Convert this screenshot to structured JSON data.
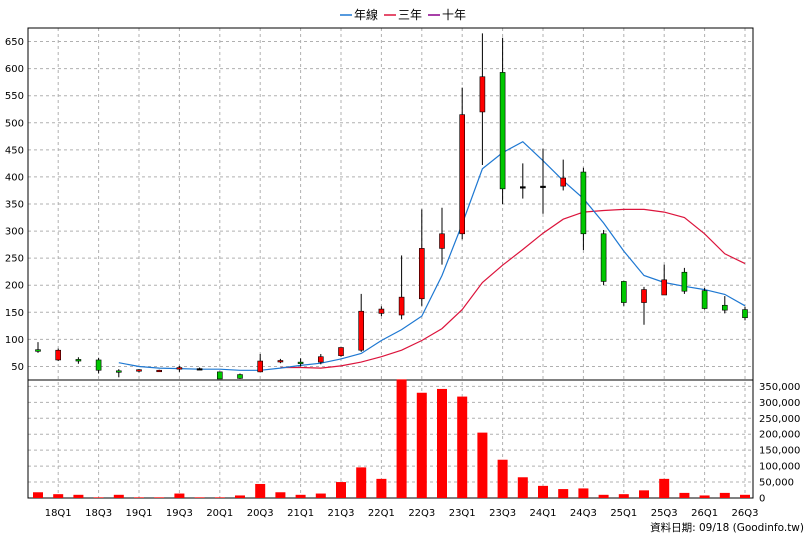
{
  "chart_data": {
    "type": "candlestick-with-volume",
    "legend": [
      {
        "name": "年線",
        "color": "#1E78D2"
      },
      {
        "name": "三年",
        "color": "#DC143C"
      },
      {
        "name": "十年",
        "color": "#8B008B"
      }
    ],
    "x_tick_labels": [
      "18Q1",
      "18Q3",
      "19Q1",
      "19Q3",
      "20Q1",
      "20Q3",
      "21Q1",
      "21Q3",
      "22Q1",
      "22Q3",
      "23Q1",
      "23Q3",
      "24Q1",
      "24Q3",
      "25Q1",
      "25Q3",
      "26Q1",
      "26Q3"
    ],
    "price_axis": {
      "ylim": [
        25,
        675
      ],
      "ticks": [
        50,
        100,
        150,
        200,
        250,
        300,
        350,
        400,
        450,
        500,
        550,
        600,
        650
      ]
    },
    "volume_axis": {
      "ylim": [
        0,
        370000
      ],
      "ticks": [
        "0",
        "50,000",
        "100,000",
        "150,000",
        "200,000",
        "250,000",
        "300,000",
        "350,000"
      ]
    },
    "grid": true,
    "candles": [
      {
        "o": 81,
        "h": 95,
        "l": 75,
        "c": 78
      },
      {
        "o": 62,
        "h": 83,
        "l": 60,
        "c": 80
      },
      {
        "o": 63,
        "h": 67,
        "l": 55,
        "c": 60
      },
      {
        "o": 62,
        "h": 66,
        "l": 37,
        "c": 43
      },
      {
        "o": 42,
        "h": 45,
        "l": 30,
        "c": 41
      },
      {
        "o": 42,
        "h": 45,
        "l": 39,
        "c": 44
      },
      {
        "o": 42,
        "h": 44,
        "l": 40,
        "c": 43
      },
      {
        "o": 45,
        "h": 51,
        "l": 40,
        "c": 48
      },
      {
        "o": 46,
        "h": 48,
        "l": 44,
        "c": 46
      },
      {
        "o": 40,
        "h": 40,
        "l": 29,
        "c": 27
      },
      {
        "o": 35,
        "h": 37,
        "l": 27,
        "c": 28
      },
      {
        "o": 40,
        "h": 73,
        "l": 40,
        "c": 60
      },
      {
        "o": 60,
        "h": 64,
        "l": 56,
        "c": 61
      },
      {
        "o": 58,
        "h": 65,
        "l": 50,
        "c": 56
      },
      {
        "o": 58,
        "h": 73,
        "l": 54,
        "c": 68
      },
      {
        "o": 70,
        "h": 85,
        "l": 68,
        "c": 85
      },
      {
        "o": 80,
        "h": 184,
        "l": 77,
        "c": 152
      },
      {
        "o": 148,
        "h": 161,
        "l": 143,
        "c": 156
      },
      {
        "o": 145,
        "h": 255,
        "l": 137,
        "c": 178
      },
      {
        "o": 175,
        "h": 340,
        "l": 162,
        "c": 268
      },
      {
        "o": 268,
        "h": 343,
        "l": 238,
        "c": 295
      },
      {
        "o": 295,
        "h": 565,
        "l": 285,
        "c": 515
      },
      {
        "o": 520,
        "h": 665,
        "l": 422,
        "c": 585
      },
      {
        "o": 593,
        "h": 657,
        "l": 350,
        "c": 378
      },
      {
        "o": 382,
        "h": 425,
        "l": 360,
        "c": 382
      },
      {
        "o": 383,
        "h": 452,
        "l": 332,
        "c": 383
      },
      {
        "o": 383,
        "h": 432,
        "l": 375,
        "c": 398
      },
      {
        "o": 409,
        "h": 417,
        "l": 265,
        "c": 295
      },
      {
        "o": 295,
        "h": 302,
        "l": 200,
        "c": 207
      },
      {
        "o": 207,
        "h": 208,
        "l": 162,
        "c": 168
      },
      {
        "o": 168,
        "h": 197,
        "l": 127,
        "c": 192
      },
      {
        "o": 182,
        "h": 238,
        "l": 182,
        "c": 210
      },
      {
        "o": 224,
        "h": 232,
        "l": 184,
        "c": 189
      },
      {
        "o": 190,
        "h": 195,
        "l": 155,
        "c": 157
      },
      {
        "o": 163,
        "h": 180,
        "l": 148,
        "c": 154
      },
      {
        "o": 155,
        "h": 160,
        "l": 135,
        "c": 140
      }
    ],
    "ma_year": [
      null,
      null,
      null,
      null,
      57,
      50,
      47,
      46,
      45,
      45,
      43,
      43,
      47,
      52,
      56,
      64,
      74,
      98,
      118,
      143,
      218,
      313,
      415,
      445,
      465,
      430,
      393,
      360,
      315,
      263,
      218,
      205,
      198,
      192,
      183,
      162
    ],
    "ma_3year": [
      null,
      null,
      null,
      null,
      null,
      null,
      null,
      null,
      null,
      null,
      null,
      null,
      48,
      48,
      47,
      51,
      58,
      68,
      80,
      98,
      120,
      155,
      205,
      237,
      266,
      296,
      322,
      335,
      338,
      340,
      340,
      335,
      325,
      295,
      258,
      240
    ],
    "volume": [
      18000,
      12000,
      10000,
      2000,
      10000,
      2000,
      2000,
      14000,
      2000,
      2000,
      8000,
      44000,
      18000,
      10000,
      14000,
      50000,
      96000,
      60000,
      372000,
      330000,
      342000,
      318000,
      205000,
      120000,
      65000,
      38000,
      28000,
      30000,
      10000,
      12000,
      24000,
      60000,
      16000,
      8000,
      16000,
      10000
    ]
  },
  "footer": {
    "source": "資料日期: 09/18  (Goodinfo.tw)"
  }
}
